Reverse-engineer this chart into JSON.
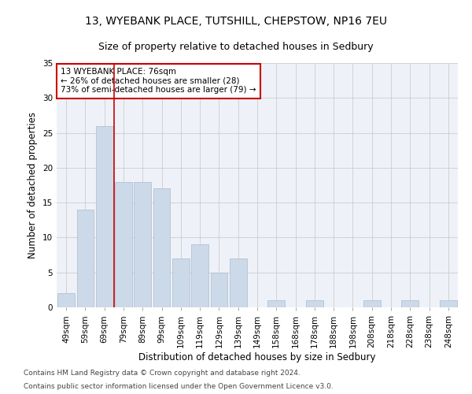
{
  "title1": "13, WYEBANK PLACE, TUTSHILL, CHEPSTOW, NP16 7EU",
  "title2": "Size of property relative to detached houses in Sedbury",
  "xlabel": "Distribution of detached houses by size in Sedbury",
  "ylabel": "Number of detached properties",
  "categories": [
    "49sqm",
    "59sqm",
    "69sqm",
    "79sqm",
    "89sqm",
    "99sqm",
    "109sqm",
    "119sqm",
    "129sqm",
    "139sqm",
    "149sqm",
    "158sqm",
    "168sqm",
    "178sqm",
    "188sqm",
    "198sqm",
    "208sqm",
    "218sqm",
    "228sqm",
    "238sqm",
    "248sqm"
  ],
  "values": [
    2,
    14,
    26,
    18,
    18,
    17,
    7,
    9,
    5,
    7,
    0,
    1,
    0,
    1,
    0,
    0,
    1,
    0,
    1,
    0,
    1
  ],
  "bar_color": "#ccd9e8",
  "bar_edgecolor": "#aabbcc",
  "ref_line_color": "#cc0000",
  "annotation_text": "13 WYEBANK PLACE: 76sqm\n← 26% of detached houses are smaller (28)\n73% of semi-detached houses are larger (79) →",
  "annotation_box_color": "#ffffff",
  "annotation_box_edgecolor": "#cc0000",
  "ylim": [
    0,
    35
  ],
  "yticks": [
    0,
    5,
    10,
    15,
    20,
    25,
    30,
    35
  ],
  "grid_color": "#cccccc",
  "background_color": "#eef2f8",
  "footer1": "Contains HM Land Registry data © Crown copyright and database right 2024.",
  "footer2": "Contains public sector information licensed under the Open Government Licence v3.0.",
  "title1_fontsize": 10,
  "title2_fontsize": 9,
  "xlabel_fontsize": 8.5,
  "ylabel_fontsize": 8.5,
  "tick_fontsize": 7.5,
  "footer_fontsize": 6.5
}
